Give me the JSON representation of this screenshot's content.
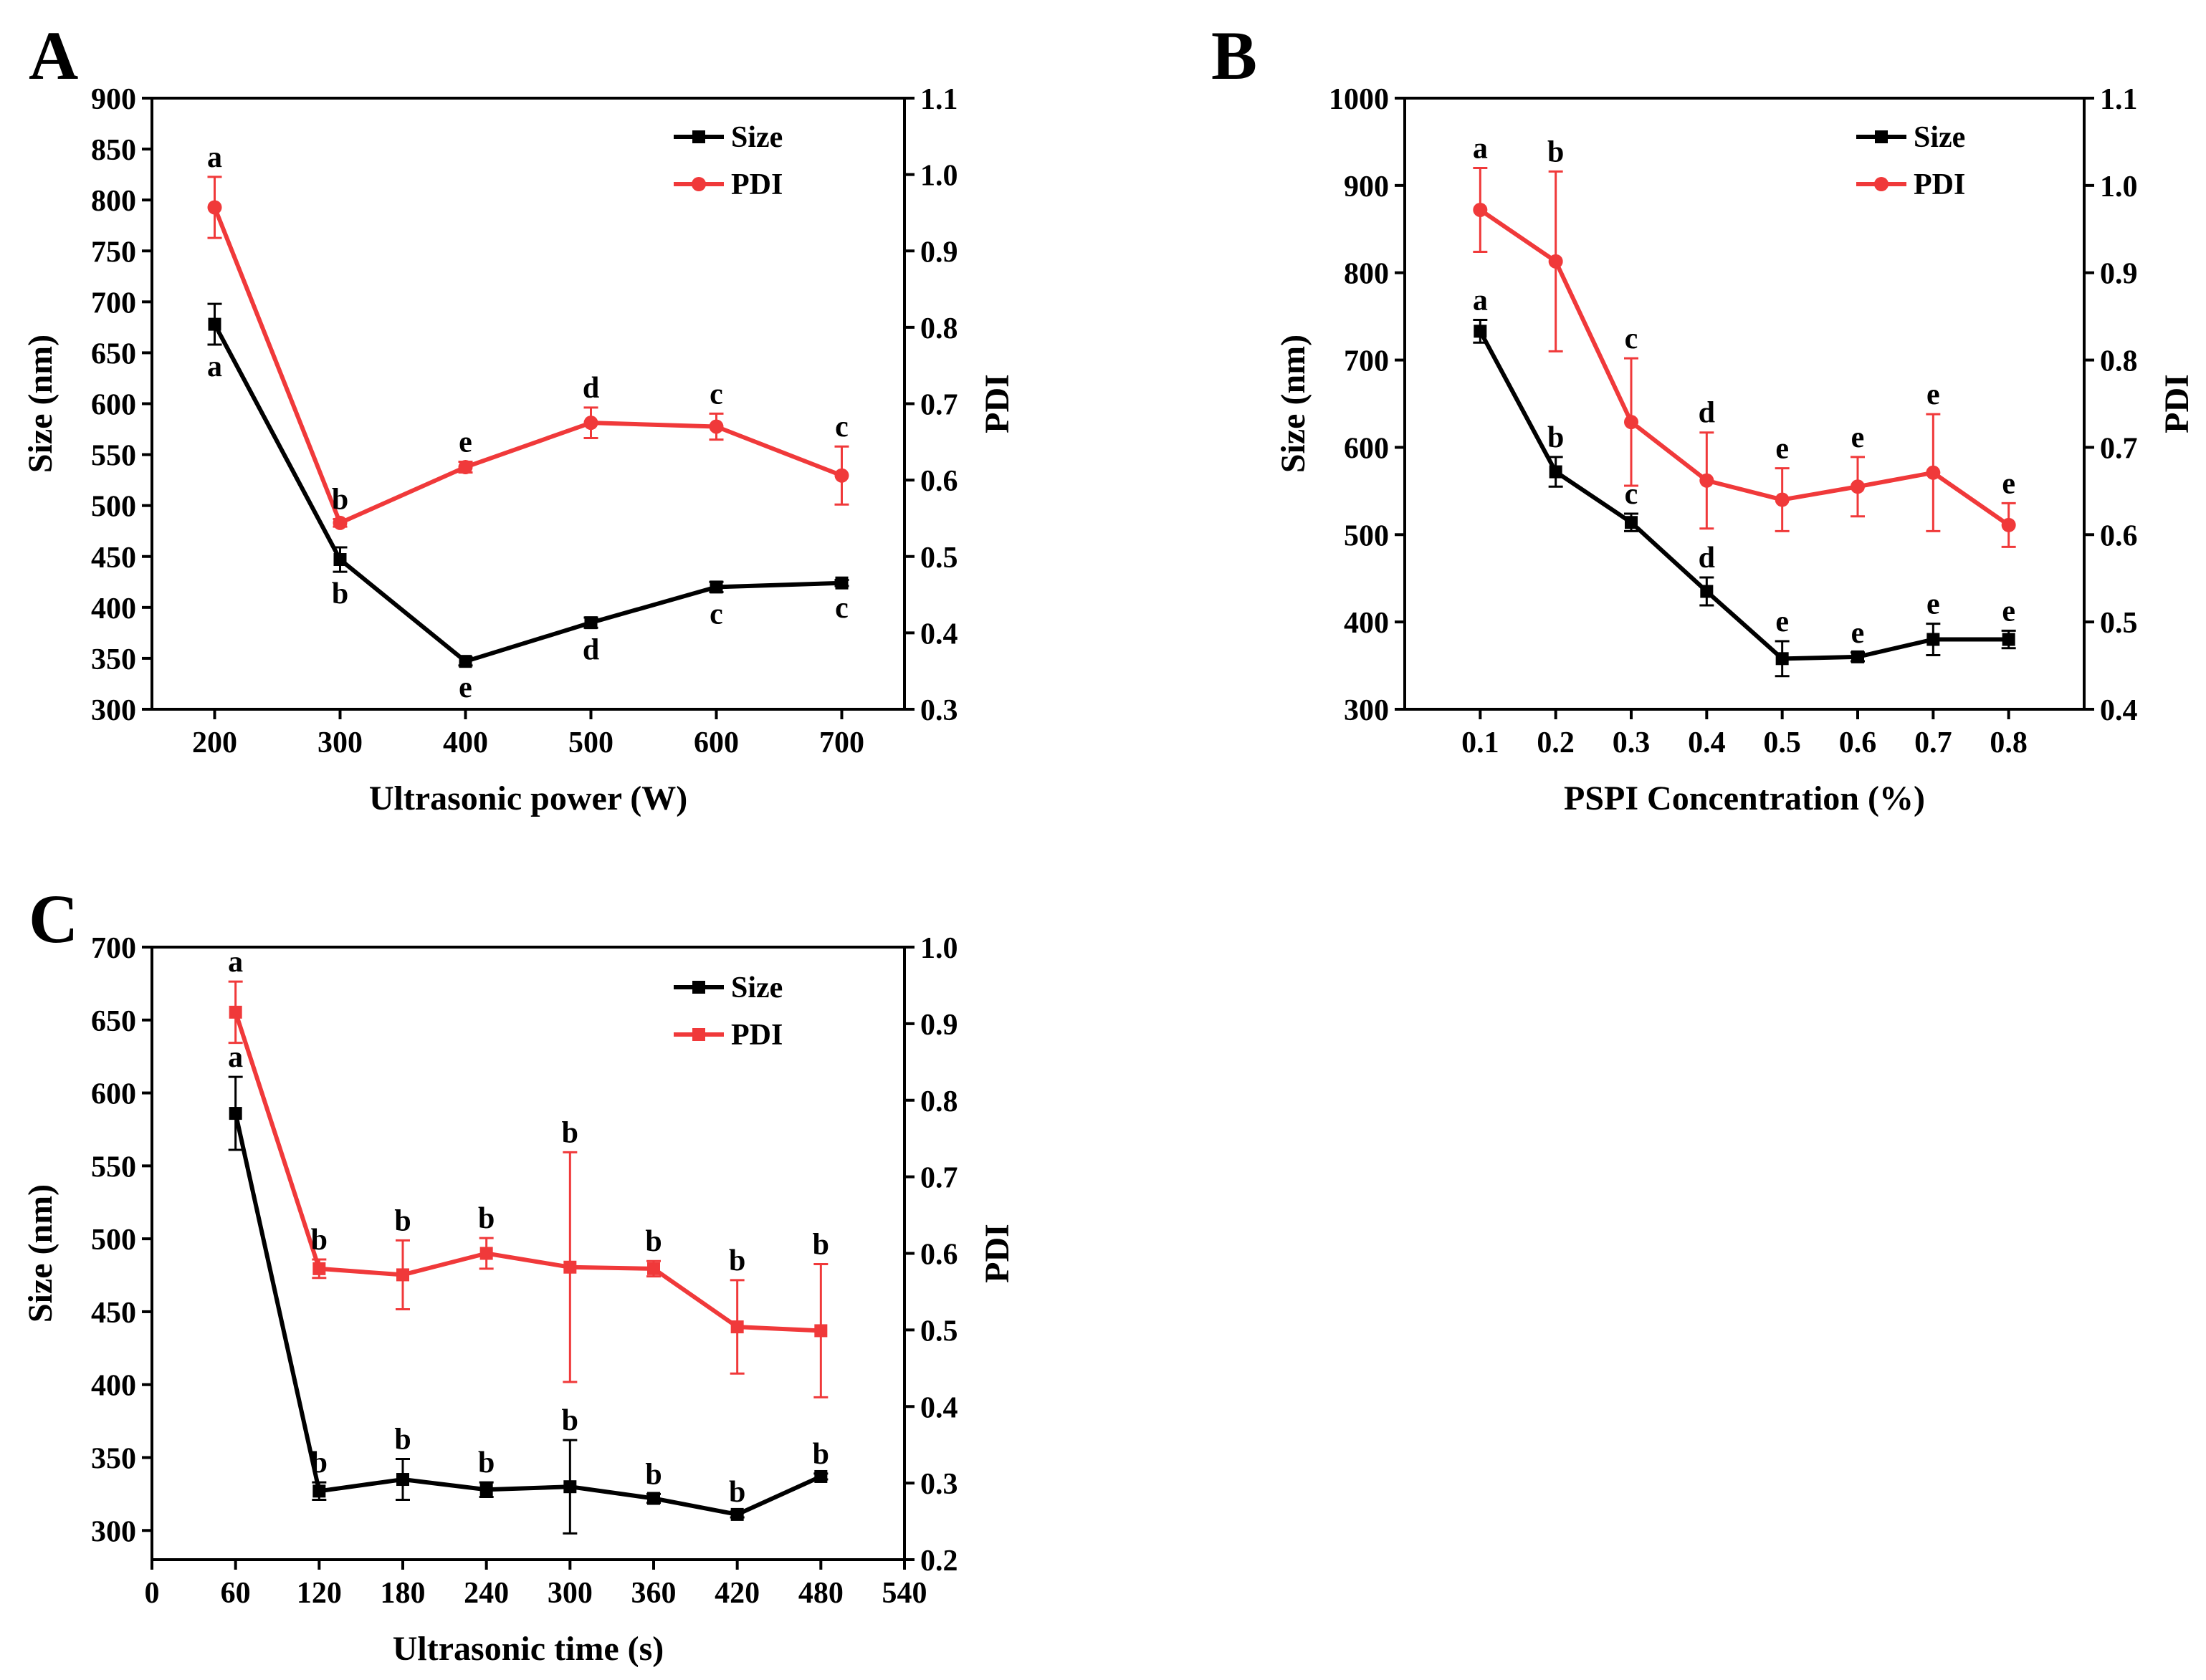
{
  "figure": {
    "panels": [
      "A",
      "B",
      "C"
    ]
  },
  "colors": {
    "size": "#000000",
    "pdi": "#f0393a",
    "axis": "#000000"
  },
  "chart_data": [
    {
      "panel": "A",
      "type": "line",
      "xlabel": "Ultrasonic power (W)",
      "ylabel": "Size (nm)",
      "y2label": "PDI",
      "x": [
        200,
        300,
        400,
        500,
        600,
        700
      ],
      "xticks": [
        200,
        300,
        400,
        500,
        600,
        700
      ],
      "xlim": [
        150,
        750
      ],
      "ylim": [
        300,
        900
      ],
      "yticks": [
        300,
        350,
        400,
        450,
        500,
        550,
        600,
        650,
        700,
        750,
        800,
        850,
        900
      ],
      "y2lim": [
        0.3,
        1.1
      ],
      "y2ticks": [
        "0.3",
        "0.4",
        "0.5",
        "0.6",
        "0.7",
        "0.8",
        "0.9",
        "1.0",
        "1.1"
      ],
      "legend_position": "top-right",
      "series": [
        {
          "name": "Size",
          "axis": "left",
          "marker": "square",
          "values": [
            678,
            447,
            347,
            385,
            420,
            424
          ],
          "errors": [
            20,
            12,
            4,
            5,
            5,
            3
          ],
          "labels": [
            "a",
            "b",
            "e",
            "d",
            "c",
            "c"
          ],
          "label_side": "below"
        },
        {
          "name": "PDI",
          "axis": "right",
          "marker": "circle",
          "values": [
            0.957,
            0.544,
            0.617,
            0.675,
            0.67,
            0.606
          ],
          "errors": [
            0.04,
            0.005,
            0.007,
            0.02,
            0.017,
            0.038
          ],
          "labels": [
            "a",
            "b",
            "e",
            "d",
            "c",
            "c"
          ],
          "label_side": "above"
        }
      ]
    },
    {
      "panel": "B",
      "type": "line",
      "xlabel": "PSPI Concentration (%)",
      "ylabel": "Size (nm)",
      "y2label": "PDI",
      "x": [
        0.1,
        0.2,
        0.3,
        0.4,
        0.5,
        0.6,
        0.7,
        0.8
      ],
      "xticks": [
        "0.1",
        "0.2",
        "0.3",
        "0.4",
        "0.5",
        "0.6",
        "0.7",
        "0.8"
      ],
      "xlim": [
        0,
        0.9
      ],
      "ylim": [
        300,
        1000
      ],
      "yticks": [
        300,
        400,
        500,
        600,
        700,
        800,
        900,
        1000
      ],
      "y2lim": [
        0.4,
        1.1
      ],
      "y2ticks": [
        "0.4",
        "0.5",
        "0.6",
        "0.7",
        "0.8",
        "0.9",
        "1.0",
        "1.1"
      ],
      "legend_position": "top-right",
      "series": [
        {
          "name": "Size",
          "axis": "left",
          "marker": "square",
          "values": [
            733,
            572,
            514,
            435,
            358,
            360,
            380,
            380
          ],
          "errors": [
            13,
            17,
            10,
            16,
            20,
            5,
            18,
            10
          ],
          "labels": [
            "a",
            "b",
            "c",
            "d",
            "e",
            "e",
            "e",
            "e"
          ],
          "label_side": "above"
        },
        {
          "name": "PDI",
          "axis": "right",
          "marker": "circle",
          "values": [
            0.972,
            0.913,
            0.729,
            0.662,
            0.64,
            0.655,
            0.671,
            0.611
          ],
          "errors": [
            0.048,
            0.103,
            0.073,
            0.055,
            0.036,
            0.034,
            0.067,
            0.025
          ],
          "labels": [
            "a",
            "b",
            "c",
            "d",
            "e",
            "e",
            "e",
            "e"
          ],
          "label_side": "above"
        }
      ]
    },
    {
      "panel": "C",
      "type": "line",
      "xlabel": "Ultrasonic time (s)",
      "ylabel": "Size (nm)",
      "y2label": "PDI",
      "x": [
        60,
        120,
        180,
        240,
        300,
        360,
        420,
        480
      ],
      "xticks": [
        0,
        60,
        120,
        180,
        240,
        300,
        360,
        420,
        480,
        540
      ],
      "xlim": [
        0,
        540
      ],
      "ylim": [
        280,
        700
      ],
      "yticks": [
        300,
        350,
        400,
        450,
        500,
        550,
        600,
        650,
        700
      ],
      "y2lim": [
        0.2,
        1.0
      ],
      "y2ticks": [
        "0.2",
        "0.3",
        "0.4",
        "0.5",
        "0.6",
        "0.7",
        "0.8",
        "0.9",
        "1.0"
      ],
      "legend_position": "top-right",
      "series": [
        {
          "name": "Size",
          "axis": "left",
          "marker": "square",
          "values": [
            586,
            327,
            335,
            328,
            330,
            322,
            311,
            337
          ],
          "errors": [
            25,
            6,
            14,
            5,
            32,
            3,
            2,
            2
          ],
          "labels": [
            "a",
            "b",
            "b",
            "b",
            "b",
            "b",
            "b",
            "b"
          ],
          "label_side": "above"
        },
        {
          "name": "PDI",
          "axis": "right",
          "marker": "square",
          "values": [
            0.915,
            0.58,
            0.572,
            0.6,
            0.582,
            0.58,
            0.504,
            0.499
          ],
          "errors": [
            0.04,
            0.012,
            0.045,
            0.02,
            0.15,
            0.01,
            0.061,
            0.087
          ],
          "labels": [
            "a",
            "b",
            "b",
            "b",
            "b",
            "b",
            "b",
            "b"
          ],
          "label_side": "above"
        }
      ]
    }
  ]
}
